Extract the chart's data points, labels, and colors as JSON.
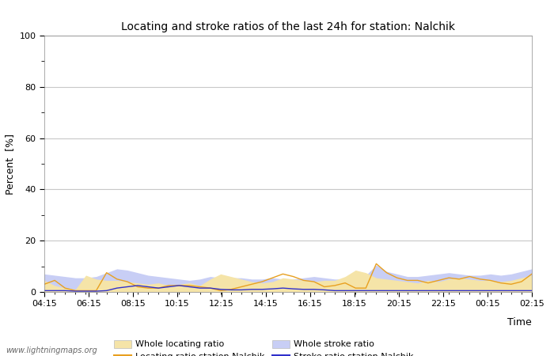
{
  "title": "Locating and stroke ratios of the last 24h for station: Nalchik",
  "xlabel": "Time",
  "ylabel": "Percent  [%]",
  "ylim": [
    0,
    100
  ],
  "yticks_major": [
    0,
    20,
    40,
    60,
    80,
    100
  ],
  "yticks_minor": [
    10,
    30,
    50,
    70,
    90
  ],
  "watermark": "www.lightningmaps.org",
  "x_labels": [
    "04:15",
    "06:15",
    "08:15",
    "10:15",
    "12:15",
    "14:15",
    "16:15",
    "18:15",
    "20:15",
    "22:15",
    "00:15",
    "02:15"
  ],
  "whole_locating_color": "#f5e4a8",
  "whole_stroke_color": "#c8cef5",
  "locating_station_color": "#e8a020",
  "stroke_station_color": "#3030cc",
  "background_color": "#ffffff",
  "plot_bg_color": "#ffffff",
  "grid_color": "#c8c8c8",
  "whole_locating": [
    4.5,
    2.5,
    1.5,
    1.0,
    6.5,
    5.0,
    4.5,
    4.5,
    4.0,
    3.5,
    3.0,
    3.5,
    2.5,
    3.0,
    3.5,
    2.5,
    5.0,
    7.0,
    6.0,
    5.0,
    4.0,
    3.5,
    4.0,
    5.5,
    5.0,
    4.5,
    4.0,
    4.5,
    4.5,
    6.0,
    8.5,
    7.5,
    5.5,
    5.0,
    4.5,
    4.0,
    3.5,
    4.5,
    4.0,
    5.0,
    5.5,
    5.0,
    4.5,
    4.5,
    4.0,
    4.5,
    5.5,
    6.5
  ],
  "whole_stroke": [
    7.0,
    6.5,
    6.0,
    5.5,
    5.5,
    6.0,
    7.5,
    9.0,
    8.5,
    7.5,
    6.5,
    6.0,
    5.5,
    5.0,
    4.5,
    5.0,
    6.0,
    5.5,
    5.5,
    5.5,
    5.0,
    5.0,
    5.5,
    5.0,
    5.0,
    5.5,
    6.0,
    5.5,
    5.0,
    5.0,
    5.5,
    6.5,
    10.5,
    8.0,
    7.0,
    6.0,
    6.0,
    6.5,
    7.0,
    7.5,
    7.0,
    6.5,
    6.5,
    7.0,
    6.5,
    7.0,
    8.0,
    9.0
  ],
  "locating_station": [
    3.0,
    4.5,
    1.5,
    0.5,
    0.5,
    0.5,
    7.5,
    5.0,
    4.0,
    2.0,
    1.5,
    1.5,
    2.5,
    2.5,
    2.5,
    2.0,
    1.5,
    0.5,
    1.0,
    2.0,
    3.0,
    4.0,
    5.5,
    7.0,
    6.0,
    4.5,
    4.0,
    2.0,
    2.5,
    3.5,
    1.5,
    1.5,
    11.0,
    7.5,
    5.5,
    4.5,
    4.5,
    3.5,
    4.5,
    5.5,
    5.0,
    6.0,
    5.0,
    4.5,
    3.5,
    3.0,
    4.0,
    7.0
  ],
  "stroke_station": [
    0.5,
    0.5,
    0.5,
    0.3,
    0.3,
    0.3,
    0.5,
    1.5,
    2.0,
    2.5,
    2.0,
    1.5,
    2.0,
    2.5,
    2.0,
    1.5,
    1.5,
    1.0,
    0.8,
    0.8,
    1.0,
    1.0,
    1.2,
    1.5,
    1.2,
    1.0,
    1.0,
    0.8,
    0.5,
    0.5,
    0.5,
    0.5,
    0.5,
    0.5,
    0.5,
    0.5,
    0.5,
    0.5,
    0.5,
    0.5,
    0.5,
    0.5,
    0.5,
    0.5,
    0.5,
    0.5,
    0.5,
    0.5
  ]
}
